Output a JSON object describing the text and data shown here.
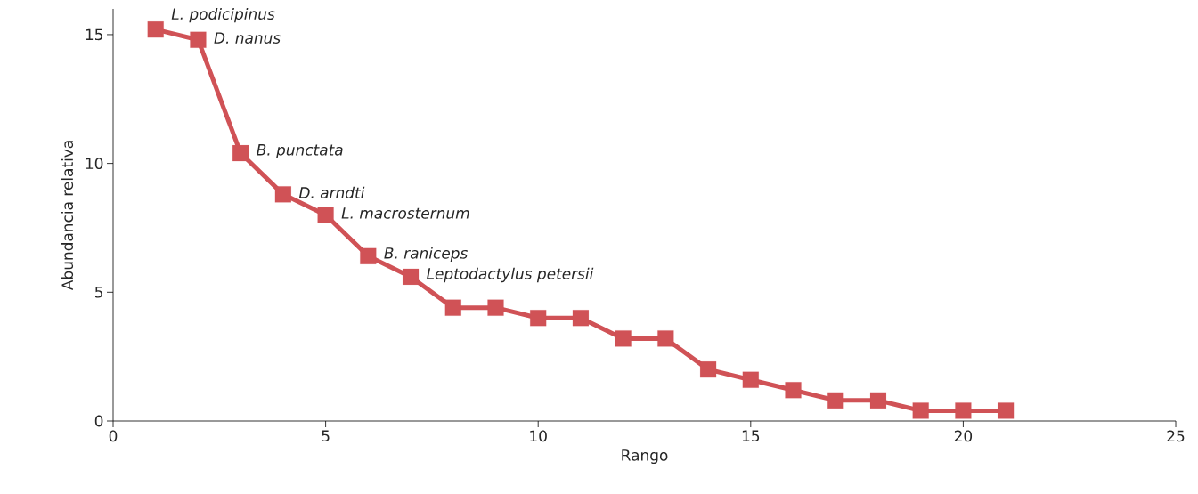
{
  "chart_data": {
    "type": "line",
    "xlabel": "Rango",
    "ylabel": "Abundancia relativa",
    "x": [
      1,
      2,
      3,
      4,
      5,
      6,
      7,
      8,
      9,
      10,
      11,
      12,
      13,
      14,
      15,
      16,
      17,
      18,
      19,
      20,
      21
    ],
    "values": [
      15.2,
      14.8,
      10.4,
      8.8,
      8.0,
      6.4,
      5.6,
      4.4,
      4.4,
      4.0,
      4.0,
      3.2,
      3.2,
      2.0,
      1.6,
      1.2,
      0.8,
      0.8,
      0.4,
      0.4,
      0.4
    ],
    "color": "#d05256",
    "marker": "square",
    "line_style": "solid",
    "xlim": [
      0,
      25
    ],
    "ylim": [
      0,
      16
    ],
    "xticks": [
      0,
      5,
      10,
      15,
      20,
      25
    ],
    "yticks": [
      0,
      5,
      10,
      15
    ],
    "annotations": [
      {
        "text": "L. podicipinus",
        "x": 1,
        "y": 15.2
      },
      {
        "text": "D. nanus",
        "x": 2,
        "y": 14.8
      },
      {
        "text": "B. punctata",
        "x": 3,
        "y": 10.4
      },
      {
        "text": "D. arndti",
        "x": 4,
        "y": 8.8
      },
      {
        "text": "L. macrosternum",
        "x": 5,
        "y": 8.0
      },
      {
        "text": "B. raniceps",
        "x": 6,
        "y": 6.4
      },
      {
        "text": "Leptodactylus petersii",
        "x": 7,
        "y": 5.6
      }
    ]
  }
}
